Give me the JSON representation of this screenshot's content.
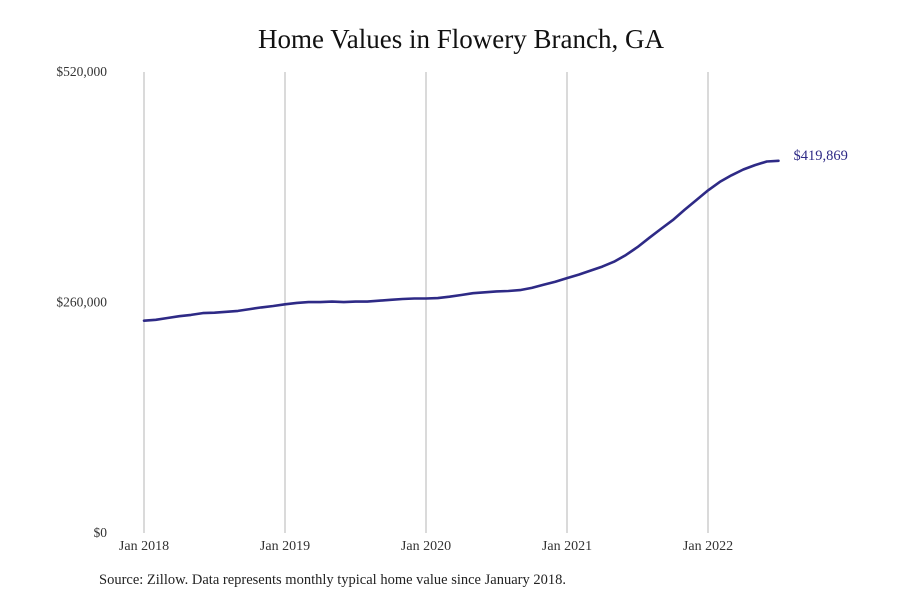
{
  "chart_data": {
    "type": "line",
    "title": "Home Values in Flowery Branch, GA",
    "xlabel": "",
    "ylabel": "",
    "ylim": [
      0,
      520000
    ],
    "yticks": [
      0,
      260000,
      520000
    ],
    "ytick_labels": [
      "$0",
      "$260,000",
      "$520,000"
    ],
    "xtick_labels": [
      "Jan 2018",
      "Jan 2019",
      "Jan 2020",
      "Jan 2021",
      "Jan 2022"
    ],
    "grid": {
      "vertical": true,
      "horizontal": false
    },
    "legend": null,
    "series": [
      {
        "name": "Typical home value",
        "color": "#2e2a86",
        "x_start": "Jan 2018",
        "frequency": "monthly",
        "values": [
          239500,
          240500,
          242500,
          244500,
          246000,
          248000,
          248500,
          249500,
          250500,
          252500,
          254500,
          256000,
          258000,
          259500,
          260500,
          260500,
          261000,
          260500,
          261000,
          261000,
          262000,
          263000,
          264000,
          264500,
          264500,
          265000,
          266500,
          268500,
          270500,
          271500,
          272500,
          273000,
          274000,
          276500,
          280000,
          283500,
          287500,
          291500,
          296000,
          300500,
          306000,
          313500,
          322500,
          333000,
          343000,
          353000,
          364500,
          375500,
          386500,
          396000,
          403500,
          410000,
          415000,
          419000,
          419869
        ],
        "end_label": "$419,869"
      }
    ],
    "footnote": "Source: Zillow. Data represents monthly typical home value since January 2018."
  },
  "colors": {
    "line": "#2e2a86",
    "gridline": "#b4b4b4",
    "background": "#ffffff"
  }
}
